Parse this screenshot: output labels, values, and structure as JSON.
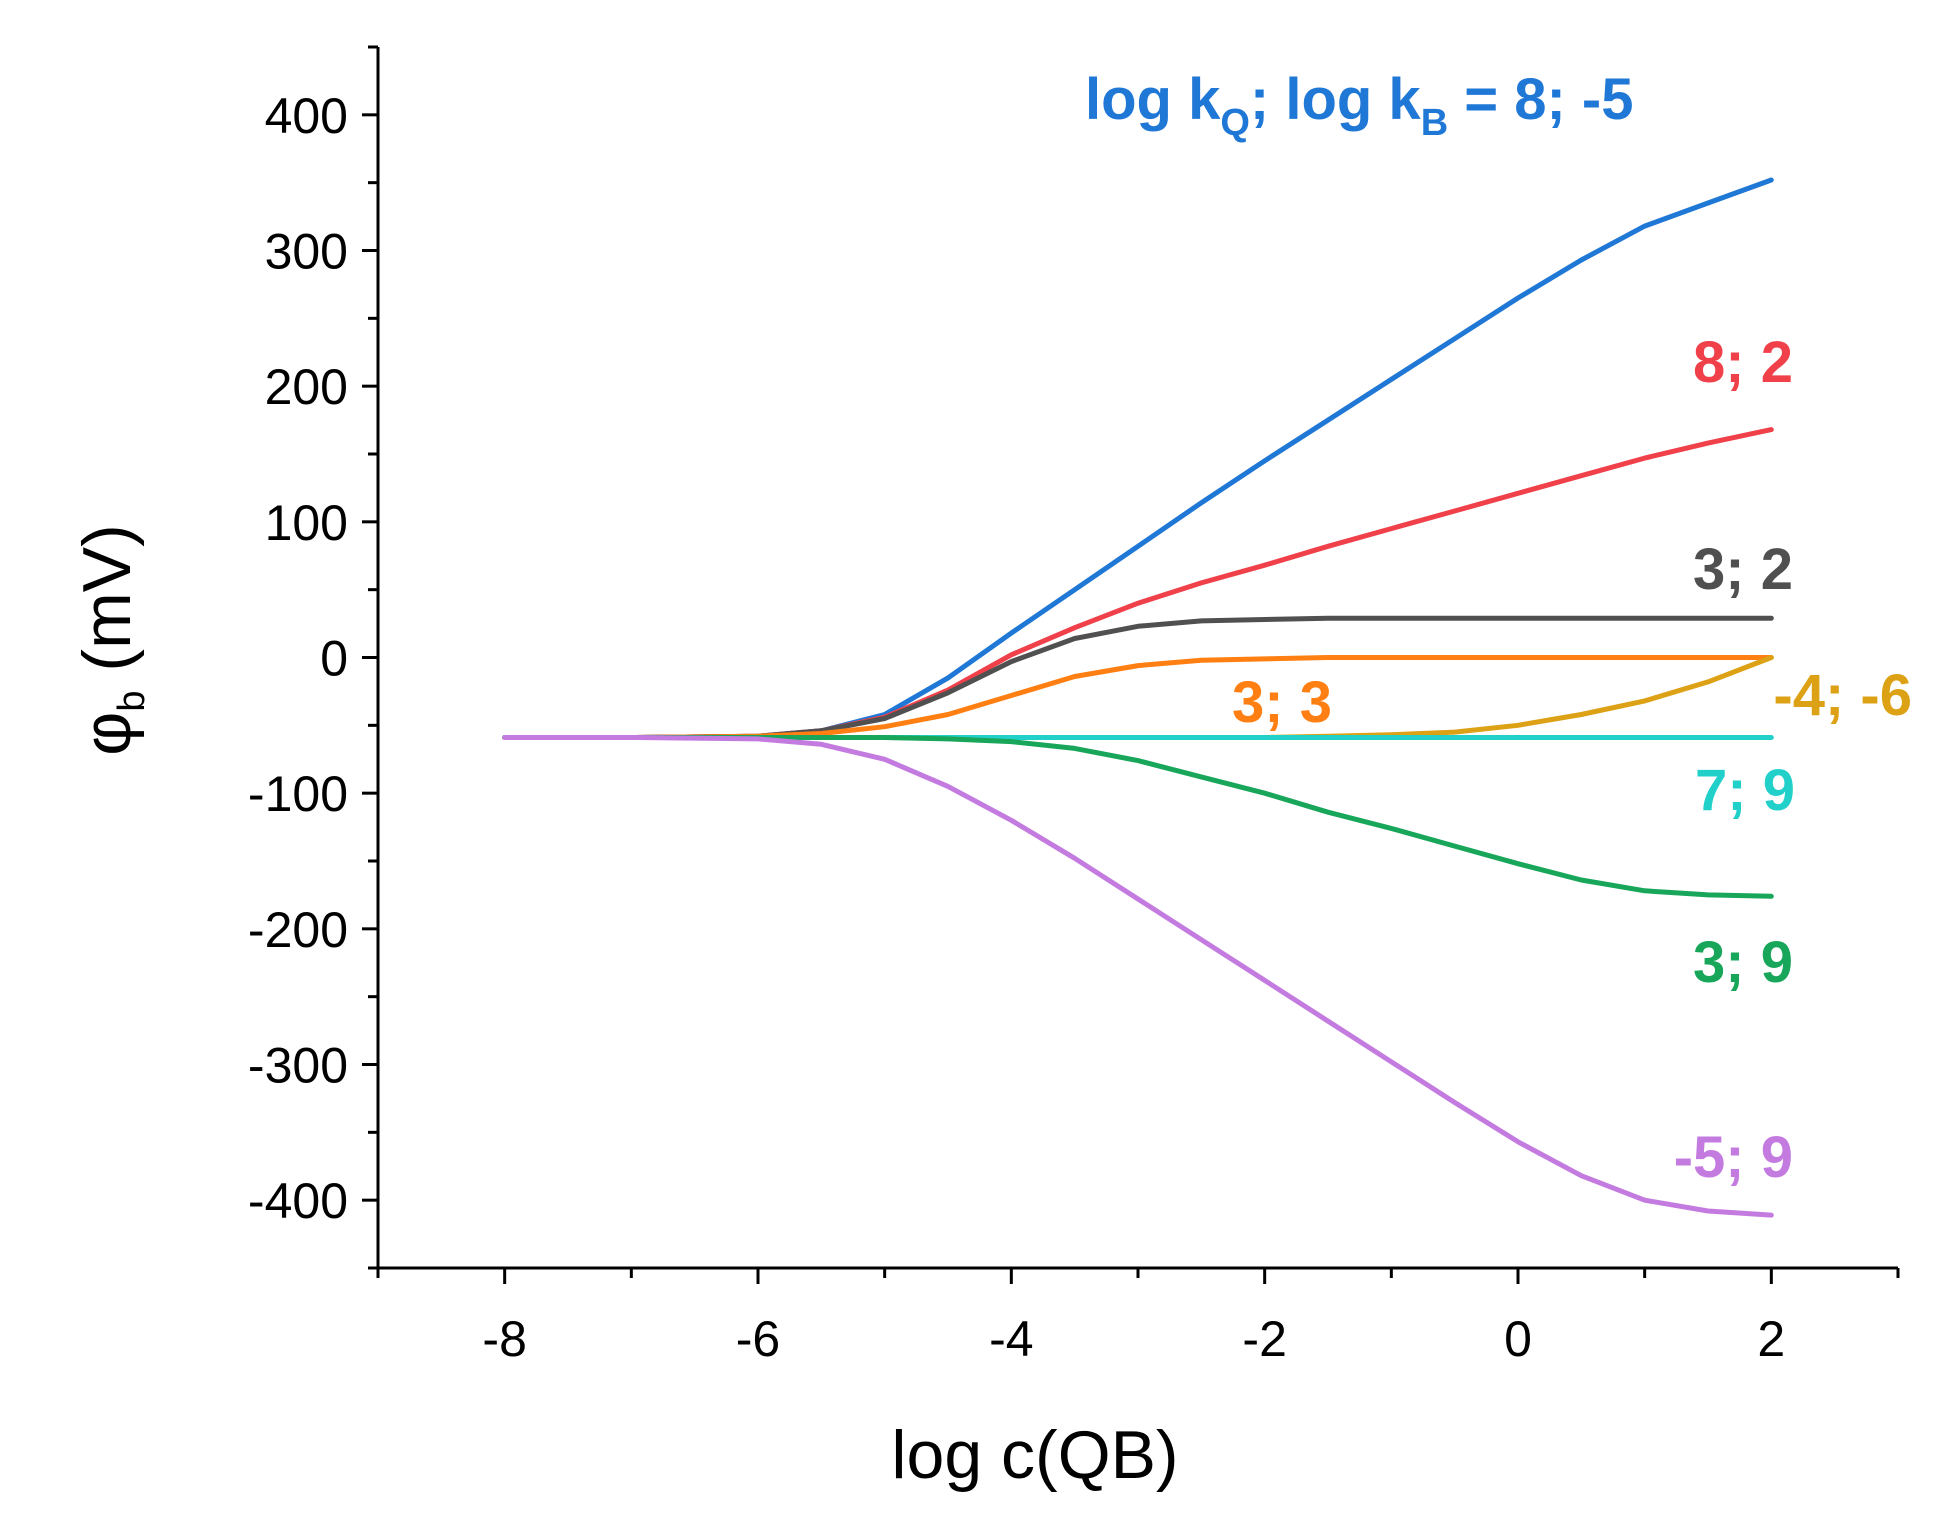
{
  "chart_data": {
    "type": "line",
    "title": "",
    "legend_title": {
      "prefix_1": "log k",
      "sub_1": "Q",
      "mid": "; log k",
      "sub_2": "B",
      "suffix": " = 8; -5",
      "color": "#1F77D6"
    },
    "xlabel": "log c(QB)",
    "ylabel": {
      "symbol": "φ",
      "sub": "b",
      "unit": " (mV)"
    },
    "xlim": [
      -9,
      3
    ],
    "ylim": [
      -450,
      450
    ],
    "xticks": [
      -8,
      -6,
      -4,
      -2,
      0,
      2
    ],
    "xtick_labels": [
      "-8",
      "-6",
      "-4",
      "-2",
      "0",
      "2"
    ],
    "yticks": [
      -400,
      -300,
      -200,
      -100,
      0,
      100,
      200,
      300,
      400
    ],
    "ytick_labels": [
      "-400",
      "-300",
      "-200",
      "-100",
      "0",
      "100",
      "200",
      "300",
      "400"
    ],
    "series": [
      {
        "name": "8; -5",
        "label": "",
        "color": "#1F77D6",
        "x": [
          -8,
          -7,
          -6,
          -5.5,
          -5,
          -4.5,
          -4,
          -3.5,
          -3,
          -2.5,
          -2,
          -1.5,
          -1,
          -0.5,
          0,
          0.5,
          1,
          1.5,
          2
        ],
        "y": [
          -59,
          -59,
          -58,
          -54,
          -42,
          -15,
          18,
          50,
          82,
          114,
          145,
          175,
          205,
          235,
          265,
          293,
          318,
          335,
          352
        ]
      },
      {
        "name": "8; 2",
        "label": "8; 2",
        "color": "#F0414B",
        "x": [
          -8,
          -7,
          -6,
          -5.5,
          -5,
          -4.5,
          -4,
          -3.5,
          -3,
          -2.5,
          -2,
          -1.5,
          -1,
          -0.5,
          0,
          0.5,
          1,
          1.5,
          2
        ],
        "y": [
          -59,
          -59,
          -58,
          -54,
          -44,
          -24,
          2,
          22,
          40,
          55,
          68,
          82,
          95,
          108,
          121,
          134,
          147,
          158,
          168
        ]
      },
      {
        "name": "3; 2",
        "label": "3; 2",
        "color": "#505050",
        "x": [
          -8,
          -7,
          -6,
          -5.5,
          -5,
          -4.5,
          -4,
          -3.5,
          -3,
          -2.5,
          -2,
          -1.5,
          -1,
          0,
          1,
          2
        ],
        "y": [
          -59,
          -59,
          -58,
          -54,
          -45,
          -26,
          -3,
          14,
          23,
          27,
          28,
          29,
          29,
          29,
          29,
          29
        ]
      },
      {
        "name": "3; 3",
        "label": "3; 3",
        "color": "#FF7F12",
        "x": [
          -8,
          -7,
          -6,
          -5.5,
          -5,
          -4.5,
          -4,
          -3.5,
          -3,
          -2.5,
          -2,
          -1.5,
          -1,
          0,
          1,
          2
        ],
        "y": [
          -59,
          -59,
          -58,
          -56,
          -51,
          -42,
          -28,
          -14,
          -6,
          -2,
          -1,
          0,
          0,
          0,
          0,
          0
        ]
      },
      {
        "name": "-4; -6",
        "label": "-4; -6",
        "color": "#DCA114",
        "x": [
          -8,
          -7,
          -6,
          -5,
          -4,
          -3,
          -2,
          -1.5,
          -1,
          -0.5,
          0,
          0.5,
          1,
          1.5,
          2
        ],
        "y": [
          -59,
          -59,
          -59,
          -59,
          -59,
          -59,
          -59,
          -58,
          -57,
          -55,
          -50,
          -42,
          -32,
          -18,
          0
        ]
      },
      {
        "name": "7; 9",
        "label": "7; 9",
        "color": "#22D0CA",
        "x": [
          -8,
          -6,
          -4,
          -2,
          0,
          2
        ],
        "y": [
          -59,
          -59,
          -59,
          -59,
          -59,
          -59
        ]
      },
      {
        "name": "3; 9",
        "label": "3; 9",
        "color": "#18A65A",
        "x": [
          -8,
          -7,
          -6,
          -5,
          -4.5,
          -4,
          -3.5,
          -3,
          -2.5,
          -2,
          -1.5,
          -1,
          -0.5,
          0,
          0.5,
          1,
          1.5,
          2
        ],
        "y": [
          -59,
          -59,
          -59,
          -59,
          -60,
          -62,
          -67,
          -76,
          -88,
          -100,
          -114,
          -126,
          -139,
          -152,
          -164,
          -172,
          -175,
          -176
        ]
      },
      {
        "name": "-5; 9",
        "label": "-5; 9",
        "color": "#C47BE0",
        "x": [
          -8,
          -7,
          -6,
          -5.5,
          -5,
          -4.5,
          -4,
          -3.5,
          -3,
          -2.5,
          -2,
          -1.5,
          -1,
          -0.5,
          0,
          0.5,
          1,
          1.5,
          2
        ],
        "y": [
          -59,
          -59,
          -60,
          -64,
          -75,
          -95,
          -120,
          -148,
          -178,
          -208,
          -238,
          -268,
          -298,
          -328,
          -357,
          -382,
          -400,
          -408,
          -411
        ]
      }
    ]
  }
}
